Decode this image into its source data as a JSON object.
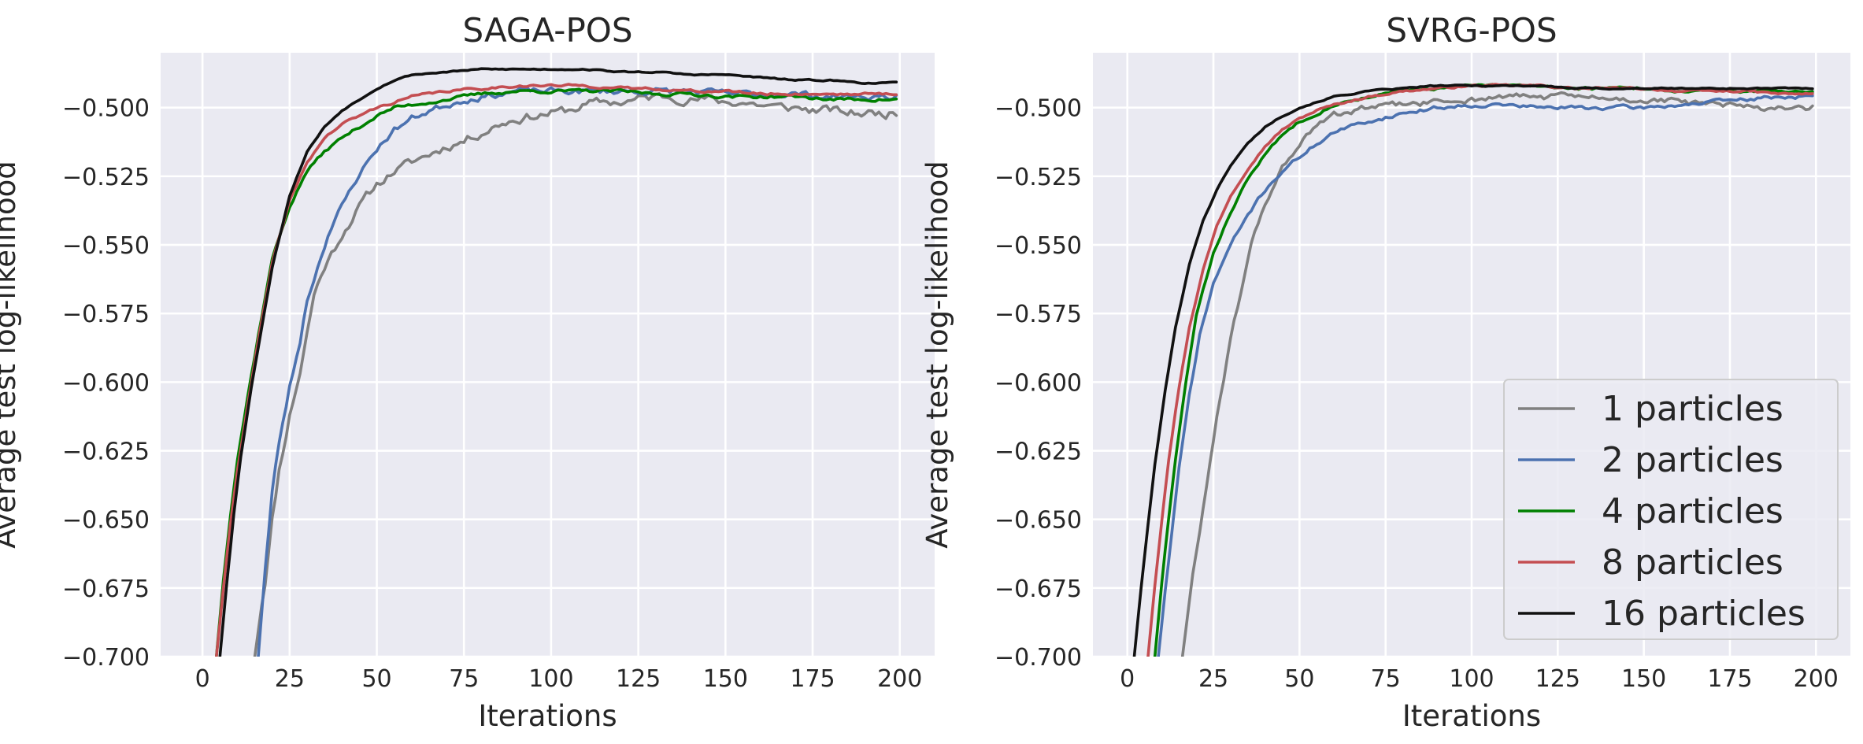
{
  "chart_data": [
    {
      "type": "line",
      "title": "SAGA-POS",
      "xlabel": "Iterations",
      "ylabel": "Average test log-likelihood",
      "xlim": [
        -12,
        210
      ],
      "ylim": [
        -0.7,
        -0.48
      ],
      "xticks": [
        0,
        25,
        50,
        75,
        100,
        125,
        150,
        175,
        200
      ],
      "xtick_labels": [
        "0",
        "25",
        "50",
        "75",
        "100",
        "125",
        "150",
        "175",
        "200"
      ],
      "yticks": [
        -0.7,
        -0.675,
        -0.65,
        -0.625,
        -0.6,
        -0.575,
        -0.55,
        -0.525,
        -0.5
      ],
      "ytick_labels": [
        "−0.700",
        "−0.675",
        "−0.650",
        "−0.625",
        "−0.600",
        "−0.575",
        "−0.550",
        "−0.525",
        "−0.500"
      ],
      "grid": true,
      "legend": null,
      "series": [
        {
          "name": "1 particles",
          "color": "#808080",
          "noise": 0.0014,
          "seed": 11,
          "x": [
            15,
            18,
            20,
            22,
            25,
            28,
            30,
            32,
            35,
            38,
            40,
            45,
            50,
            55,
            60,
            65,
            70,
            75,
            80,
            85,
            90,
            95,
            100,
            105,
            110,
            115,
            120,
            125,
            130,
            135,
            140,
            145,
            150,
            155,
            160,
            165,
            170,
            175,
            180,
            185,
            190,
            195,
            199
          ],
          "y": [
            -0.7,
            -0.672,
            -0.65,
            -0.632,
            -0.612,
            -0.596,
            -0.582,
            -0.568,
            -0.558,
            -0.551,
            -0.546,
            -0.536,
            -0.528,
            -0.523,
            -0.52,
            -0.517,
            -0.514,
            -0.512,
            -0.509,
            -0.506,
            -0.504,
            -0.503,
            -0.502,
            -0.501,
            -0.499,
            -0.498,
            -0.498,
            -0.497,
            -0.496,
            -0.496,
            -0.497,
            -0.497,
            -0.498,
            -0.498,
            -0.499,
            -0.5,
            -0.5,
            -0.501,
            -0.501,
            -0.502,
            -0.502,
            -0.502,
            -0.502
          ]
        },
        {
          "name": "2 particles",
          "color": "#4c72b0",
          "noise": 0.001,
          "seed": 23,
          "x": [
            16,
            18,
            20,
            22,
            25,
            28,
            30,
            33,
            36,
            40,
            45,
            50,
            55,
            60,
            65,
            70,
            75,
            80,
            85,
            90,
            100,
            110,
            120,
            130,
            140,
            150,
            160,
            170,
            180,
            190,
            199
          ],
          "y": [
            -0.7,
            -0.668,
            -0.64,
            -0.622,
            -0.602,
            -0.585,
            -0.57,
            -0.558,
            -0.546,
            -0.536,
            -0.524,
            -0.515,
            -0.508,
            -0.504,
            -0.501,
            -0.499,
            -0.497,
            -0.496,
            -0.495,
            -0.494,
            -0.494,
            -0.494,
            -0.494,
            -0.494,
            -0.494,
            -0.495,
            -0.495,
            -0.495,
            -0.496,
            -0.496,
            -0.496
          ]
        },
        {
          "name": "4 particles",
          "color": "#008000",
          "noise": 0.0005,
          "seed": 37,
          "x": [
            4,
            6,
            8,
            10,
            13,
            16,
            20,
            25,
            30,
            35,
            40,
            45,
            50,
            55,
            60,
            70,
            80,
            90,
            100,
            110,
            120,
            130,
            140,
            150,
            160,
            170,
            180,
            190,
            199
          ],
          "y": [
            -0.7,
            -0.672,
            -0.648,
            -0.628,
            -0.605,
            -0.583,
            -0.555,
            -0.536,
            -0.523,
            -0.516,
            -0.511,
            -0.507,
            -0.503,
            -0.5,
            -0.499,
            -0.497,
            -0.495,
            -0.494,
            -0.494,
            -0.494,
            -0.494,
            -0.495,
            -0.495,
            -0.496,
            -0.496,
            -0.496,
            -0.497,
            -0.497,
            -0.497
          ]
        },
        {
          "name": "8 particles",
          "color": "#c44e52",
          "noise": 0.0004,
          "seed": 41,
          "x": [
            4,
            6,
            8,
            10,
            13,
            16,
            20,
            25,
            30,
            35,
            40,
            45,
            50,
            55,
            60,
            70,
            80,
            90,
            100,
            110,
            120,
            130,
            140,
            150,
            160,
            170,
            180,
            190,
            199
          ],
          "y": [
            -0.7,
            -0.675,
            -0.652,
            -0.632,
            -0.608,
            -0.585,
            -0.557,
            -0.534,
            -0.52,
            -0.511,
            -0.506,
            -0.503,
            -0.5,
            -0.498,
            -0.496,
            -0.494,
            -0.493,
            -0.492,
            -0.492,
            -0.492,
            -0.493,
            -0.493,
            -0.494,
            -0.494,
            -0.495,
            -0.495,
            -0.495,
            -0.495,
            -0.495
          ]
        },
        {
          "name": "16 particles",
          "color": "#111111",
          "noise": 0.0002,
          "seed": 53,
          "x": [
            5,
            7,
            9,
            11,
            14,
            17,
            20,
            25,
            30,
            35,
            40,
            45,
            50,
            55,
            60,
            70,
            80,
            90,
            100,
            110,
            120,
            130,
            140,
            150,
            160,
            170,
            180,
            190,
            199
          ],
          "y": [
            -0.7,
            -0.673,
            -0.648,
            -0.627,
            -0.602,
            -0.58,
            -0.558,
            -0.532,
            -0.516,
            -0.507,
            -0.501,
            -0.497,
            -0.493,
            -0.49,
            -0.488,
            -0.487,
            -0.486,
            -0.486,
            -0.486,
            -0.486,
            -0.487,
            -0.487,
            -0.488,
            -0.488,
            -0.489,
            -0.49,
            -0.49,
            -0.491,
            -0.491
          ]
        }
      ]
    },
    {
      "type": "line",
      "title": "SVRG-POS",
      "xlabel": "Iterations",
      "ylabel": "Average test log-likelihood",
      "xlim": [
        -10,
        210
      ],
      "ylim": [
        -0.7,
        -0.48
      ],
      "xticks": [
        0,
        25,
        50,
        75,
        100,
        125,
        150,
        175,
        200
      ],
      "xtick_labels": [
        "0",
        "25",
        "50",
        "75",
        "100",
        "125",
        "150",
        "175",
        "200"
      ],
      "yticks": [
        -0.7,
        -0.675,
        -0.65,
        -0.625,
        -0.6,
        -0.575,
        -0.55,
        -0.525,
        -0.5
      ],
      "ytick_labels": [
        "−0.700",
        "−0.675",
        "−0.650",
        "−0.625",
        "−0.600",
        "−0.575",
        "−0.550",
        "−0.525",
        "−0.500"
      ],
      "grid": true,
      "legend": "lower-right",
      "series": [
        {
          "name": "1 particles",
          "color": "#808080",
          "noise": 0.001,
          "seed": 61,
          "x": [
            16,
            18,
            20,
            23,
            26,
            30,
            33,
            36,
            40,
            45,
            50,
            55,
            60,
            70,
            80,
            90,
            100,
            110,
            120,
            130,
            140,
            150,
            160,
            170,
            180,
            190,
            199
          ],
          "y": [
            -0.7,
            -0.68,
            -0.662,
            -0.638,
            -0.612,
            -0.585,
            -0.567,
            -0.55,
            -0.535,
            -0.522,
            -0.513,
            -0.507,
            -0.503,
            -0.5,
            -0.499,
            -0.498,
            -0.497,
            -0.496,
            -0.496,
            -0.496,
            -0.497,
            -0.497,
            -0.498,
            -0.499,
            -0.5,
            -0.5,
            -0.5
          ]
        },
        {
          "name": "2 particles",
          "color": "#4c72b0",
          "noise": 0.0006,
          "seed": 71,
          "x": [
            9,
            11,
            13,
            15,
            18,
            21,
            25,
            30,
            35,
            40,
            45,
            50,
            55,
            60,
            70,
            80,
            90,
            100,
            110,
            120,
            130,
            140,
            150,
            160,
            170,
            180,
            190,
            199
          ],
          "y": [
            -0.7,
            -0.676,
            -0.654,
            -0.632,
            -0.605,
            -0.583,
            -0.564,
            -0.55,
            -0.539,
            -0.53,
            -0.523,
            -0.518,
            -0.513,
            -0.509,
            -0.505,
            -0.502,
            -0.5,
            -0.499,
            -0.499,
            -0.5,
            -0.5,
            -0.5,
            -0.5,
            -0.499,
            -0.498,
            -0.497,
            -0.496,
            -0.496
          ]
        },
        {
          "name": "4 particles",
          "color": "#008000",
          "noise": 0.0004,
          "seed": 83,
          "x": [
            8,
            10,
            12,
            14,
            17,
            20,
            25,
            30,
            35,
            40,
            45,
            50,
            55,
            60,
            70,
            80,
            90,
            100,
            110,
            120,
            130,
            140,
            150,
            160,
            170,
            180,
            190,
            199
          ],
          "y": [
            -0.7,
            -0.673,
            -0.65,
            -0.628,
            -0.6,
            -0.576,
            -0.553,
            -0.538,
            -0.526,
            -0.517,
            -0.51,
            -0.505,
            -0.502,
            -0.499,
            -0.496,
            -0.494,
            -0.493,
            -0.492,
            -0.492,
            -0.492,
            -0.493,
            -0.493,
            -0.493,
            -0.494,
            -0.494,
            -0.494,
            -0.494,
            -0.494
          ]
        },
        {
          "name": "8 particles",
          "color": "#c44e52",
          "noise": 0.0003,
          "seed": 97,
          "x": [
            6,
            8,
            10,
            12,
            15,
            18,
            22,
            26,
            30,
            35,
            40,
            45,
            50,
            55,
            60,
            70,
            80,
            90,
            100,
            110,
            120,
            130,
            140,
            150,
            160,
            170,
            180,
            190,
            199
          ],
          "y": [
            -0.7,
            -0.674,
            -0.65,
            -0.628,
            -0.602,
            -0.58,
            -0.559,
            -0.543,
            -0.532,
            -0.522,
            -0.514,
            -0.508,
            -0.504,
            -0.501,
            -0.499,
            -0.496,
            -0.494,
            -0.493,
            -0.492,
            -0.492,
            -0.492,
            -0.493,
            -0.493,
            -0.493,
            -0.494,
            -0.494,
            -0.494,
            -0.495,
            -0.495
          ]
        },
        {
          "name": "16 particles",
          "color": "#111111",
          "noise": 0.0002,
          "seed": 101,
          "x": [
            2,
            4,
            6,
            8,
            11,
            14,
            18,
            22,
            26,
            30,
            35,
            40,
            45,
            50,
            55,
            60,
            70,
            80,
            90,
            100,
            110,
            120,
            130,
            140,
            150,
            160,
            170,
            180,
            190,
            199
          ],
          "y": [
            -0.7,
            -0.675,
            -0.652,
            -0.63,
            -0.603,
            -0.58,
            -0.557,
            -0.541,
            -0.53,
            -0.521,
            -0.513,
            -0.507,
            -0.503,
            -0.5,
            -0.498,
            -0.496,
            -0.494,
            -0.493,
            -0.492,
            -0.492,
            -0.492,
            -0.492,
            -0.493,
            -0.493,
            -0.493,
            -0.493,
            -0.493,
            -0.493,
            -0.493,
            -0.493
          ]
        }
      ]
    }
  ]
}
